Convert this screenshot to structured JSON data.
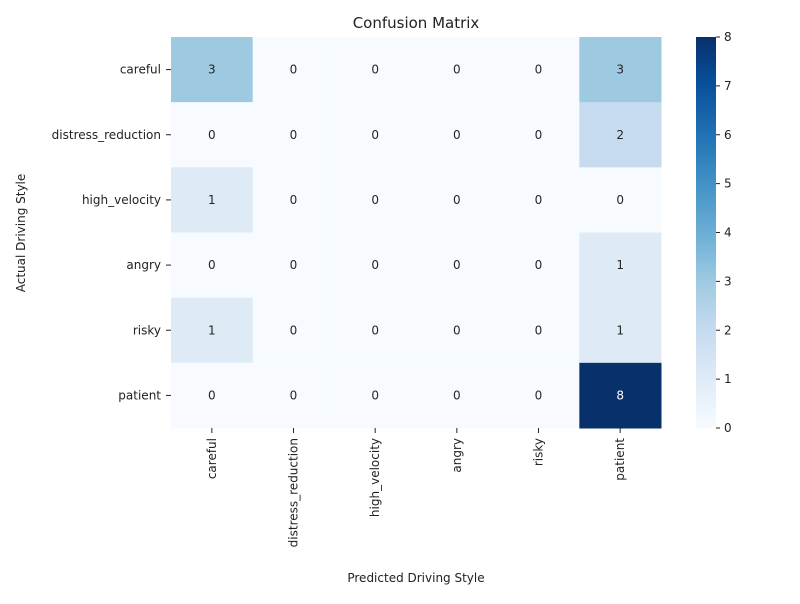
{
  "chart_data": {
    "type": "heatmap",
    "title": "Confusion Matrix",
    "xlabel": "Predicted Driving Style",
    "ylabel": "Actual Driving Style",
    "x_categories": [
      "careful",
      "distress_reduction",
      "high_velocity",
      "angry",
      "risky",
      "patient"
    ],
    "y_categories": [
      "careful",
      "distress_reduction",
      "high_velocity",
      "angry",
      "risky",
      "patient"
    ],
    "matrix": [
      [
        3,
        0,
        0,
        0,
        0,
        3
      ],
      [
        0,
        0,
        0,
        0,
        0,
        2
      ],
      [
        1,
        0,
        0,
        0,
        0,
        0
      ],
      [
        0,
        0,
        0,
        0,
        0,
        1
      ],
      [
        1,
        0,
        0,
        0,
        0,
        1
      ],
      [
        0,
        0,
        0,
        0,
        0,
        8
      ]
    ],
    "colorbar": {
      "min": 0,
      "max": 8,
      "ticks": [
        0,
        1,
        2,
        3,
        4,
        5,
        6,
        7,
        8
      ],
      "colormap": "Blues"
    },
    "colors": {
      "low": "#f7fbff",
      "high": "#08306b"
    }
  }
}
